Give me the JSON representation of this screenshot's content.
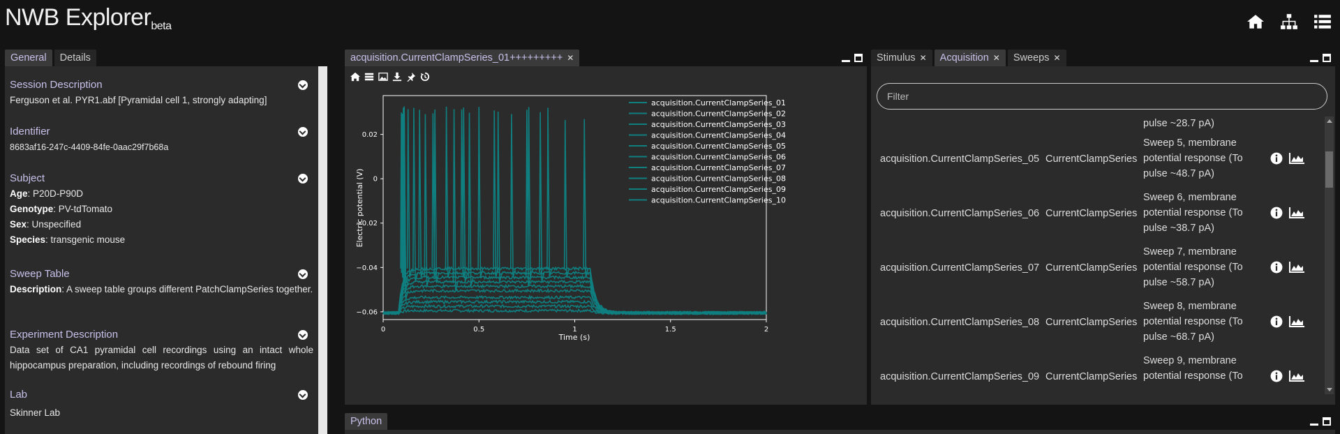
{
  "app": {
    "title": "NWB Explorer",
    "beta": "beta"
  },
  "header_icons": [
    "home-icon",
    "sitemap-icon",
    "list-icon"
  ],
  "left_panel": {
    "tabs": [
      {
        "label": "General",
        "active": true
      },
      {
        "label": "Details",
        "active": false
      }
    ],
    "sections": [
      {
        "title": "Session Description",
        "lines": [
          "Ferguson et al. PYR1.abf [Pyramidal cell 1, strongly adapting]"
        ]
      },
      {
        "title": "Identifier",
        "lines": [
          "8683af16-247c-4409-84fe-0aac29f7b68a"
        ]
      },
      {
        "title": "Subject",
        "fields": [
          {
            "key": "Age",
            "value": ": P20D-P90D"
          },
          {
            "key": "Genotype",
            "value": ": PV-tdTomato"
          },
          {
            "key": "Sex",
            "value": ": Unspecified"
          },
          {
            "key": "Species",
            "value": ": transgenic mouse"
          }
        ]
      },
      {
        "title": "Sweep Table",
        "fields": [
          {
            "key": "Description",
            "value": ": A sweep table groups different PatchClampSeries together."
          }
        ]
      },
      {
        "title": "Experiment Description",
        "lines": [
          "Data set of CA1 pyramidal cell recordings using an intact whole hippocampus preparation, including recordings of rebound firing"
        ]
      },
      {
        "title": "Lab",
        "lines": [
          "Skinner Lab"
        ]
      }
    ]
  },
  "center_panel": {
    "tab": "acquisition.CurrentClampSeries_01+++++++++",
    "toolbar": [
      "home-icon",
      "list-icon",
      "image-icon",
      "download-icon",
      "pin-icon",
      "history-icon"
    ]
  },
  "right_panel": {
    "tabs": [
      {
        "label": "Stimulus",
        "active": false
      },
      {
        "label": "Acquisition",
        "active": true
      },
      {
        "label": "Sweeps",
        "active": false
      }
    ],
    "filter_placeholder": "Filter",
    "partial_row_desc": "pulse ~28.7 pA)",
    "rows": [
      {
        "name": "acquisition.CurrentClampSeries_05",
        "type": "CurrentClampSeries",
        "desc": "Sweep 5, membrane potential response (To pulse ~48.7 pA)"
      },
      {
        "name": "acquisition.CurrentClampSeries_06",
        "type": "CurrentClampSeries",
        "desc": "Sweep 6, membrane potential response (To pulse ~38.7 pA)"
      },
      {
        "name": "acquisition.CurrentClampSeries_07",
        "type": "CurrentClampSeries",
        "desc": "Sweep 7, membrane potential response (To pulse ~58.7 pA)"
      },
      {
        "name": "acquisition.CurrentClampSeries_08",
        "type": "CurrentClampSeries",
        "desc": "Sweep 8, membrane potential response (To pulse ~68.7 pA)"
      },
      {
        "name": "acquisition.CurrentClampSeries_09",
        "type": "CurrentClampSeries",
        "desc": "Sweep 9, membrane potential response (To"
      }
    ]
  },
  "bottom_panel": {
    "tab": "Python"
  },
  "colors": {
    "accent": "#c9c0ea",
    "trace": "#0f7f80",
    "background": "#141414",
    "panel": "#2b2b2b"
  },
  "chart_data": {
    "type": "line",
    "xlabel": "Time (s)",
    "ylabel": "Electric potential (V)",
    "xlim": [
      0,
      2
    ],
    "ylim": [
      -0.0635,
      0.0375
    ],
    "xticks": [
      "0",
      "0.5",
      "1",
      "1.5",
      "2"
    ],
    "xtick_values": [
      0,
      0.5,
      1,
      1.5,
      2
    ],
    "yticks": [
      "0.02",
      "0",
      "−0.02",
      "−0.04",
      "−0.06"
    ],
    "ytick_values": [
      0.02,
      0,
      -0.02,
      -0.04,
      -0.06
    ],
    "legend_position": "top-right",
    "stimulus_window": [
      0.08,
      1.08
    ],
    "series": [
      {
        "name": "acquisition.CurrentClampSeries_01",
        "baseline": -0.0605,
        "plateau": -0.0595,
        "spikes": []
      },
      {
        "name": "acquisition.CurrentClampSeries_02",
        "baseline": -0.0605,
        "plateau": -0.0575,
        "spikes": []
      },
      {
        "name": "acquisition.CurrentClampSeries_03",
        "baseline": -0.0605,
        "plateau": -0.0555,
        "spikes": []
      },
      {
        "name": "acquisition.CurrentClampSeries_04",
        "baseline": -0.0605,
        "plateau": -0.0535,
        "spikes": []
      },
      {
        "name": "acquisition.CurrentClampSeries_05",
        "baseline": -0.0605,
        "plateau": -0.0505,
        "spikes": [
          0.11
        ]
      },
      {
        "name": "acquisition.CurrentClampSeries_06",
        "baseline": -0.0605,
        "plateau": -0.0485,
        "spikes": []
      },
      {
        "name": "acquisition.CurrentClampSeries_07",
        "baseline": -0.0605,
        "plateau": -0.0465,
        "spikes": [
          0.11,
          0.37
        ]
      },
      {
        "name": "acquisition.CurrentClampSeries_08",
        "baseline": -0.0605,
        "plateau": -0.0445,
        "spikes": [
          0.105,
          0.22,
          0.45,
          0.75
        ]
      },
      {
        "name": "acquisition.CurrentClampSeries_09",
        "baseline": -0.0605,
        "plateau": -0.0425,
        "spikes": [
          0.1,
          0.16,
          0.27,
          0.42,
          0.6,
          0.82
        ]
      },
      {
        "name": "acquisition.CurrentClampSeries_10",
        "baseline": -0.0605,
        "plateau": -0.0405,
        "spikes": [
          0.095,
          0.13,
          0.19,
          0.26,
          0.33,
          0.41,
          0.5,
          0.58,
          0.67,
          0.76,
          0.86,
          0.95,
          1.05
        ]
      }
    ]
  }
}
